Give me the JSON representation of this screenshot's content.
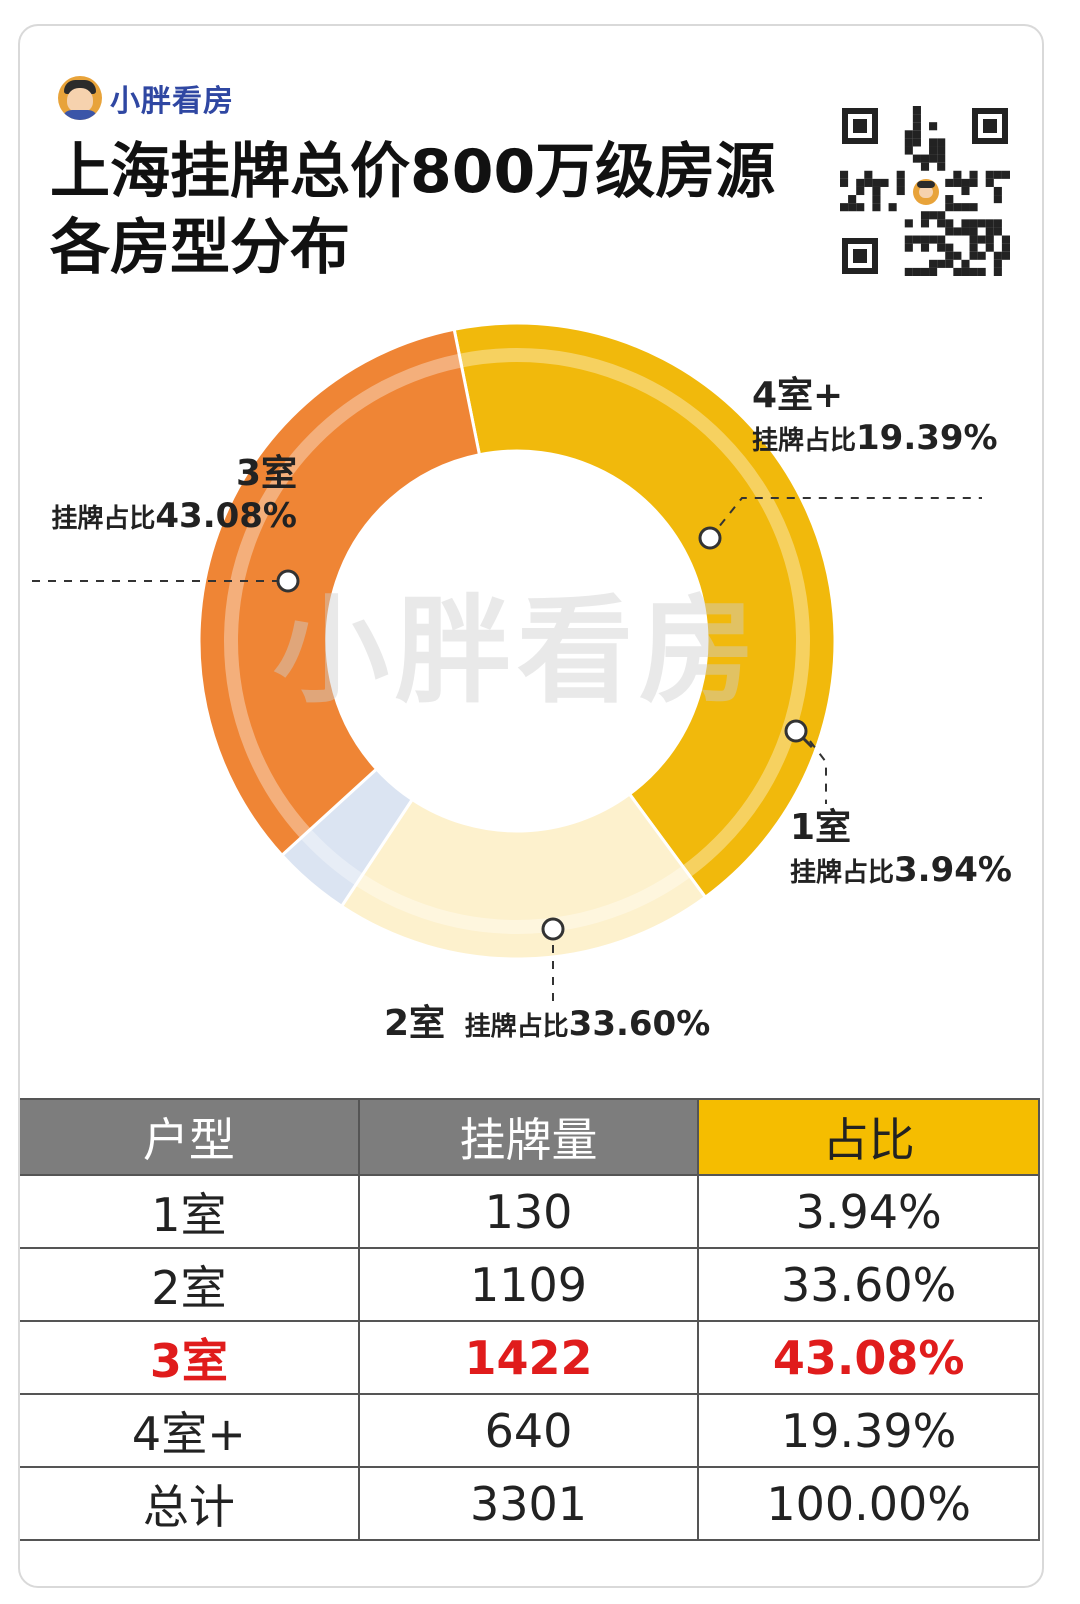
{
  "brand": {
    "name": "小胖看房"
  },
  "title_line1": "上海挂牌总价800万级房源",
  "title_line2": "各房型分布",
  "watermark": "小胖看房",
  "icons": {
    "logo": "avatar-icon",
    "qr": "qr-code-icon",
    "search": "magnifier-icon"
  },
  "colors": {
    "r3": "#f1b90c",
    "r4": "#fdf1cd",
    "r1": "#dbe4f2",
    "r2": "#ef8535",
    "header_gray": "#7d7d7d",
    "header_accent": "#f5bd00",
    "highlight": "#e01c1c"
  },
  "labels": {
    "r3": {
      "name": "3室",
      "prefix": "挂牌占比",
      "pct": "43.08%"
    },
    "r4": {
      "name": "4室+",
      "prefix": "挂牌占比",
      "pct": "19.39%"
    },
    "r1": {
      "name": "1室",
      "prefix": "挂牌占比",
      "pct": "3.94%"
    },
    "r2": {
      "name": "2室",
      "prefix": "挂牌占比",
      "pct": "33.60%"
    }
  },
  "chart_data": {
    "type": "pie",
    "categories": [
      "3室",
      "4室+",
      "1室",
      "2室"
    ],
    "values": [
      43.08,
      19.39,
      3.94,
      33.6
    ],
    "start_angle_deg": -11.4
  },
  "table": {
    "headers": [
      "户型",
      "挂牌量",
      "占比"
    ],
    "rows": [
      [
        "1室",
        "130",
        "3.94%"
      ],
      [
        "2室",
        "1109",
        "33.60%"
      ],
      [
        "3室",
        "1422",
        "43.08%"
      ],
      [
        "4室+",
        "640",
        "19.39%"
      ],
      [
        "总计",
        "3301",
        "100.00%"
      ]
    ],
    "highlight_row": 2
  }
}
